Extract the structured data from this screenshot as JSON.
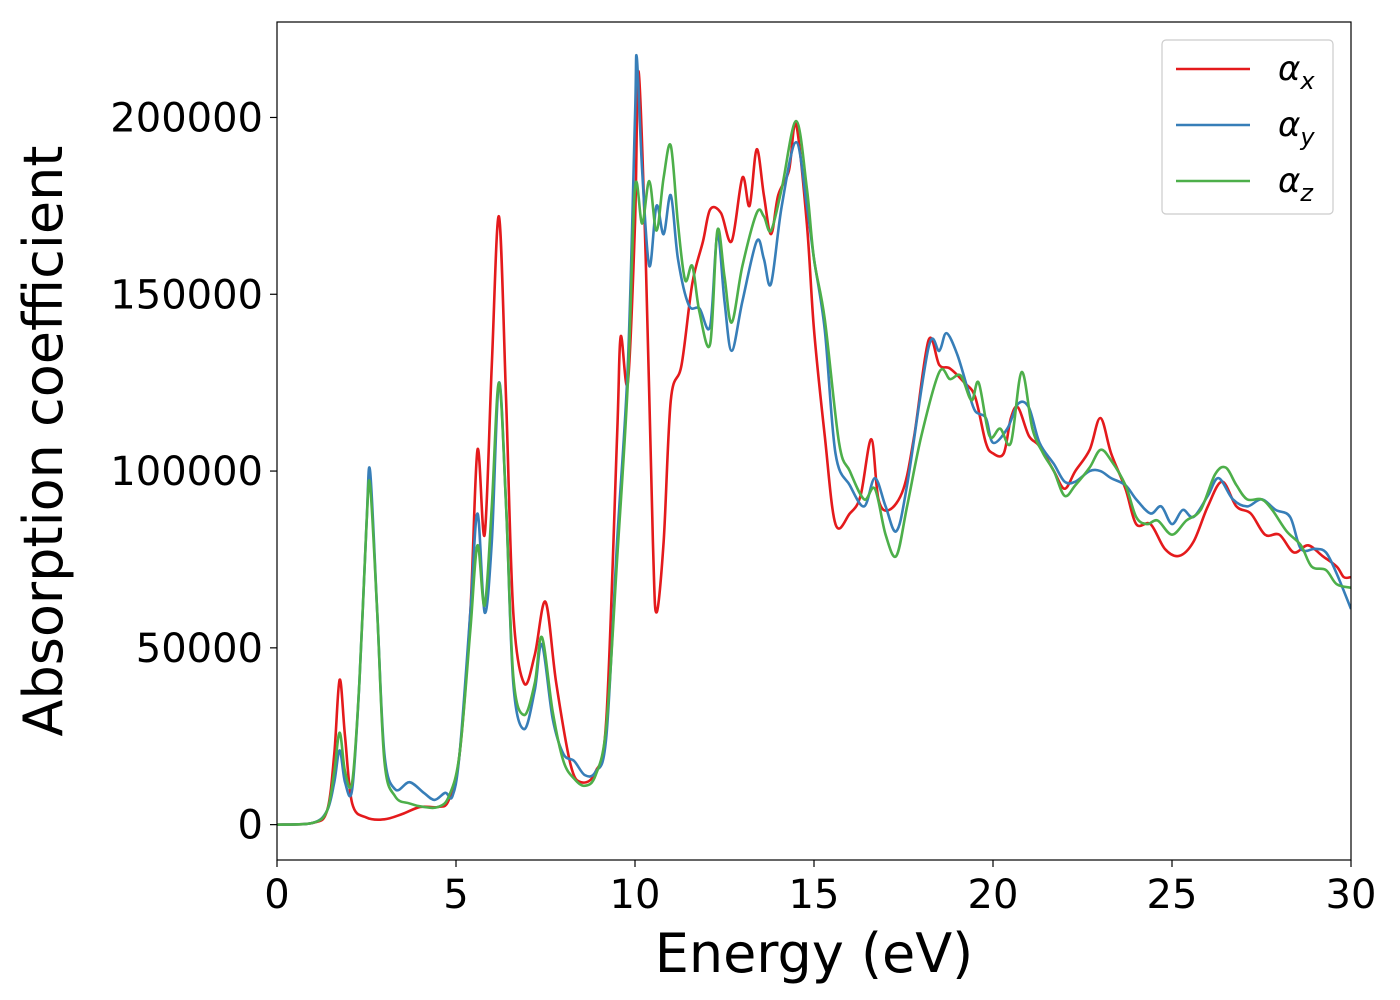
{
  "chart_data": {
    "type": "line",
    "title": "",
    "xlabel": "Energy (eV)",
    "ylabel": "Absorption coefficient",
    "xlim": [
      0,
      30
    ],
    "ylim": [
      -10000,
      227000
    ],
    "xticks": [
      0,
      5,
      10,
      15,
      20,
      25,
      30
    ],
    "yticks": [
      0,
      50000,
      100000,
      150000,
      200000
    ],
    "xtick_labels": [
      "0",
      "5",
      "10",
      "15",
      "20",
      "25",
      "30"
    ],
    "ytick_labels": [
      "0",
      "50000",
      "100000",
      "150000",
      "200000"
    ],
    "grid": false,
    "legend_position": "top-right",
    "series": [
      {
        "name": "α",
        "subscript": "x",
        "color": "#e41a1c",
        "points": [
          [
            0,
            0
          ],
          [
            1,
            500
          ],
          [
            1.4,
            4000
          ],
          [
            1.6,
            20000
          ],
          [
            1.75,
            41000
          ],
          [
            1.9,
            25000
          ],
          [
            2.1,
            6000
          ],
          [
            2.5,
            2000
          ],
          [
            3,
            1500
          ],
          [
            3.5,
            3000
          ],
          [
            4,
            5000
          ],
          [
            4.5,
            5000
          ],
          [
            4.8,
            7000
          ],
          [
            5.1,
            20000
          ],
          [
            5.4,
            60000
          ],
          [
            5.6,
            106000
          ],
          [
            5.8,
            82000
          ],
          [
            6,
            130000
          ],
          [
            6.2,
            172000
          ],
          [
            6.4,
            120000
          ],
          [
            6.6,
            60000
          ],
          [
            6.9,
            40000
          ],
          [
            7.2,
            48000
          ],
          [
            7.5,
            63000
          ],
          [
            7.8,
            40000
          ],
          [
            8.2,
            17000
          ],
          [
            8.5,
            12000
          ],
          [
            8.9,
            15000
          ],
          [
            9.2,
            30000
          ],
          [
            9.5,
            110000
          ],
          [
            9.6,
            138000
          ],
          [
            9.8,
            125000
          ],
          [
            10,
            170000
          ],
          [
            10.1,
            213000
          ],
          [
            10.3,
            160000
          ],
          [
            10.5,
            80000
          ],
          [
            10.6,
            60000
          ],
          [
            10.8,
            80000
          ],
          [
            11,
            120000
          ],
          [
            11.3,
            130000
          ],
          [
            11.6,
            153000
          ],
          [
            11.9,
            165000
          ],
          [
            12.1,
            174000
          ],
          [
            12.4,
            173000
          ],
          [
            12.7,
            165000
          ],
          [
            13,
            183000
          ],
          [
            13.2,
            175000
          ],
          [
            13.4,
            191000
          ],
          [
            13.6,
            178000
          ],
          [
            13.8,
            167000
          ],
          [
            14,
            178000
          ],
          [
            14.3,
            185000
          ],
          [
            14.5,
            198000
          ],
          [
            14.8,
            170000
          ],
          [
            15,
            140000
          ],
          [
            15.3,
            110000
          ],
          [
            15.6,
            85000
          ],
          [
            16,
            88000
          ],
          [
            16.3,
            93000
          ],
          [
            16.6,
            109000
          ],
          [
            16.8,
            92000
          ],
          [
            17.1,
            89000
          ],
          [
            17.5,
            95000
          ],
          [
            17.8,
            110000
          ],
          [
            18.2,
            137000
          ],
          [
            18.5,
            130000
          ],
          [
            18.8,
            129000
          ],
          [
            19.2,
            125000
          ],
          [
            19.5,
            121000
          ],
          [
            19.8,
            108000
          ],
          [
            20,
            105000
          ],
          [
            20.3,
            105000
          ],
          [
            20.5,
            115000
          ],
          [
            20.7,
            118000
          ],
          [
            21,
            110000
          ],
          [
            21.3,
            107000
          ],
          [
            21.7,
            100000
          ],
          [
            22,
            95000
          ],
          [
            22.3,
            100000
          ],
          [
            22.7,
            106000
          ],
          [
            23,
            115000
          ],
          [
            23.3,
            105000
          ],
          [
            23.7,
            95000
          ],
          [
            24,
            85000
          ],
          [
            24.4,
            85000
          ],
          [
            24.8,
            78000
          ],
          [
            25.2,
            76000
          ],
          [
            25.6,
            80000
          ],
          [
            26,
            90000
          ],
          [
            26.4,
            97000
          ],
          [
            26.8,
            90000
          ],
          [
            27.2,
            88000
          ],
          [
            27.6,
            82000
          ],
          [
            28,
            82000
          ],
          [
            28.4,
            77000
          ],
          [
            28.8,
            79000
          ],
          [
            29.2,
            76000
          ],
          [
            29.6,
            73000
          ],
          [
            29.8,
            70000
          ],
          [
            30,
            70000
          ]
        ]
      },
      {
        "name": "α",
        "subscript": "y",
        "color": "#377eb8",
        "points": [
          [
            0,
            0
          ],
          [
            1,
            500
          ],
          [
            1.4,
            4000
          ],
          [
            1.6,
            12000
          ],
          [
            1.75,
            21000
          ],
          [
            1.9,
            12000
          ],
          [
            2.1,
            10000
          ],
          [
            2.3,
            40000
          ],
          [
            2.5,
            85000
          ],
          [
            2.6,
            100000
          ],
          [
            2.8,
            60000
          ],
          [
            3,
            20000
          ],
          [
            3.3,
            10000
          ],
          [
            3.7,
            12000
          ],
          [
            4.1,
            9000
          ],
          [
            4.4,
            7000
          ],
          [
            4.7,
            9000
          ],
          [
            4.9,
            8000
          ],
          [
            5.1,
            20000
          ],
          [
            5.4,
            60000
          ],
          [
            5.6,
            88000
          ],
          [
            5.8,
            60000
          ],
          [
            6,
            80000
          ],
          [
            6.2,
            125000
          ],
          [
            6.4,
            90000
          ],
          [
            6.6,
            40000
          ],
          [
            6.9,
            27000
          ],
          [
            7.2,
            38000
          ],
          [
            7.4,
            51000
          ],
          [
            7.7,
            30000
          ],
          [
            8,
            20000
          ],
          [
            8.3,
            18000
          ],
          [
            8.6,
            14000
          ],
          [
            8.9,
            15000
          ],
          [
            9.2,
            25000
          ],
          [
            9.5,
            80000
          ],
          [
            9.8,
            130000
          ],
          [
            10,
            200000
          ],
          [
            10.05,
            217000
          ],
          [
            10.2,
            185000
          ],
          [
            10.4,
            158000
          ],
          [
            10.6,
            175000
          ],
          [
            10.8,
            167000
          ],
          [
            11,
            178000
          ],
          [
            11.2,
            160000
          ],
          [
            11.5,
            147000
          ],
          [
            11.8,
            146000
          ],
          [
            12.1,
            141000
          ],
          [
            12.3,
            167000
          ],
          [
            12.5,
            148000
          ],
          [
            12.7,
            134000
          ],
          [
            13,
            148000
          ],
          [
            13.4,
            165000
          ],
          [
            13.6,
            160000
          ],
          [
            13.8,
            153000
          ],
          [
            14.1,
            175000
          ],
          [
            14.5,
            193000
          ],
          [
            14.8,
            175000
          ],
          [
            15,
            160000
          ],
          [
            15.3,
            140000
          ],
          [
            15.6,
            105000
          ],
          [
            16,
            96000
          ],
          [
            16.4,
            90000
          ],
          [
            16.7,
            98000
          ],
          [
            17,
            90000
          ],
          [
            17.3,
            83000
          ],
          [
            17.6,
            96000
          ],
          [
            18.2,
            135000
          ],
          [
            18.5,
            134000
          ],
          [
            18.7,
            139000
          ],
          [
            19,
            133000
          ],
          [
            19.3,
            123000
          ],
          [
            19.5,
            117000
          ],
          [
            19.8,
            115000
          ],
          [
            20,
            108000
          ],
          [
            20.4,
            112000
          ],
          [
            20.7,
            119000
          ],
          [
            21,
            118000
          ],
          [
            21.3,
            108000
          ],
          [
            21.7,
            102000
          ],
          [
            22,
            97000
          ],
          [
            22.3,
            97000
          ],
          [
            22.7,
            100000
          ],
          [
            23,
            100000
          ],
          [
            23.3,
            98000
          ],
          [
            23.7,
            96000
          ],
          [
            24,
            92000
          ],
          [
            24.4,
            88000
          ],
          [
            24.7,
            90000
          ],
          [
            25,
            85000
          ],
          [
            25.3,
            89000
          ],
          [
            25.6,
            87000
          ],
          [
            26,
            93000
          ],
          [
            26.3,
            98000
          ],
          [
            26.7,
            92000
          ],
          [
            27.1,
            90000
          ],
          [
            27.5,
            92000
          ],
          [
            27.9,
            89000
          ],
          [
            28.3,
            87000
          ],
          [
            28.6,
            78000
          ],
          [
            29,
            78000
          ],
          [
            29.3,
            77000
          ],
          [
            29.6,
            71000
          ],
          [
            30,
            61000
          ]
        ]
      },
      {
        "name": "α",
        "subscript": "z",
        "color": "#4daf4a",
        "points": [
          [
            0,
            0
          ],
          [
            1,
            500
          ],
          [
            1.4,
            4000
          ],
          [
            1.6,
            15000
          ],
          [
            1.75,
            26000
          ],
          [
            1.9,
            15000
          ],
          [
            2.1,
            12000
          ],
          [
            2.3,
            40000
          ],
          [
            2.5,
            85000
          ],
          [
            2.6,
            96000
          ],
          [
            2.8,
            60000
          ],
          [
            3,
            18000
          ],
          [
            3.3,
            8000
          ],
          [
            3.7,
            6000
          ],
          [
            4.1,
            5000
          ],
          [
            4.5,
            5000
          ],
          [
            4.8,
            8000
          ],
          [
            5.1,
            20000
          ],
          [
            5.4,
            55000
          ],
          [
            5.6,
            79000
          ],
          [
            5.8,
            62000
          ],
          [
            6,
            90000
          ],
          [
            6.2,
            125000
          ],
          [
            6.4,
            90000
          ],
          [
            6.6,
            42000
          ],
          [
            6.9,
            31000
          ],
          [
            7.2,
            40000
          ],
          [
            7.4,
            53000
          ],
          [
            7.7,
            32000
          ],
          [
            8,
            18000
          ],
          [
            8.3,
            13000
          ],
          [
            8.6,
            11000
          ],
          [
            8.9,
            14000
          ],
          [
            9.2,
            28000
          ],
          [
            9.5,
            75000
          ],
          [
            9.8,
            125000
          ],
          [
            10,
            180000
          ],
          [
            10.2,
            170000
          ],
          [
            10.4,
            182000
          ],
          [
            10.6,
            168000
          ],
          [
            10.8,
            183000
          ],
          [
            11,
            192000
          ],
          [
            11.2,
            170000
          ],
          [
            11.4,
            154000
          ],
          [
            11.6,
            158000
          ],
          [
            11.8,
            145000
          ],
          [
            12.1,
            136000
          ],
          [
            12.3,
            168000
          ],
          [
            12.5,
            155000
          ],
          [
            12.7,
            142000
          ],
          [
            13,
            158000
          ],
          [
            13.4,
            173000
          ],
          [
            13.6,
            172000
          ],
          [
            13.8,
            168000
          ],
          [
            14.1,
            180000
          ],
          [
            14.5,
            199000
          ],
          [
            14.8,
            180000
          ],
          [
            15,
            160000
          ],
          [
            15.3,
            143000
          ],
          [
            15.7,
            108000
          ],
          [
            16,
            100000
          ],
          [
            16.4,
            92000
          ],
          [
            16.7,
            95000
          ],
          [
            17,
            82000
          ],
          [
            17.3,
            76000
          ],
          [
            17.6,
            90000
          ],
          [
            18,
            110000
          ],
          [
            18.5,
            128000
          ],
          [
            18.8,
            126000
          ],
          [
            19.1,
            127000
          ],
          [
            19.4,
            120000
          ],
          [
            19.6,
            125000
          ],
          [
            19.9,
            110000
          ],
          [
            20.2,
            112000
          ],
          [
            20.5,
            108000
          ],
          [
            20.8,
            128000
          ],
          [
            21.1,
            112000
          ],
          [
            21.4,
            105000
          ],
          [
            21.7,
            100000
          ],
          [
            22,
            93000
          ],
          [
            22.3,
            96000
          ],
          [
            22.7,
            101000
          ],
          [
            23,
            106000
          ],
          [
            23.3,
            103000
          ],
          [
            23.7,
            96000
          ],
          [
            24,
            87000
          ],
          [
            24.3,
            85000
          ],
          [
            24.6,
            86000
          ],
          [
            25,
            82000
          ],
          [
            25.4,
            86000
          ],
          [
            25.8,
            89000
          ],
          [
            26.2,
            99000
          ],
          [
            26.5,
            101000
          ],
          [
            26.8,
            96000
          ],
          [
            27.1,
            92000
          ],
          [
            27.5,
            92000
          ],
          [
            27.8,
            89000
          ],
          [
            28.2,
            83000
          ],
          [
            28.6,
            79000
          ],
          [
            28.9,
            73000
          ],
          [
            29.3,
            72000
          ],
          [
            29.6,
            68000
          ],
          [
            30,
            67000
          ]
        ]
      }
    ]
  }
}
